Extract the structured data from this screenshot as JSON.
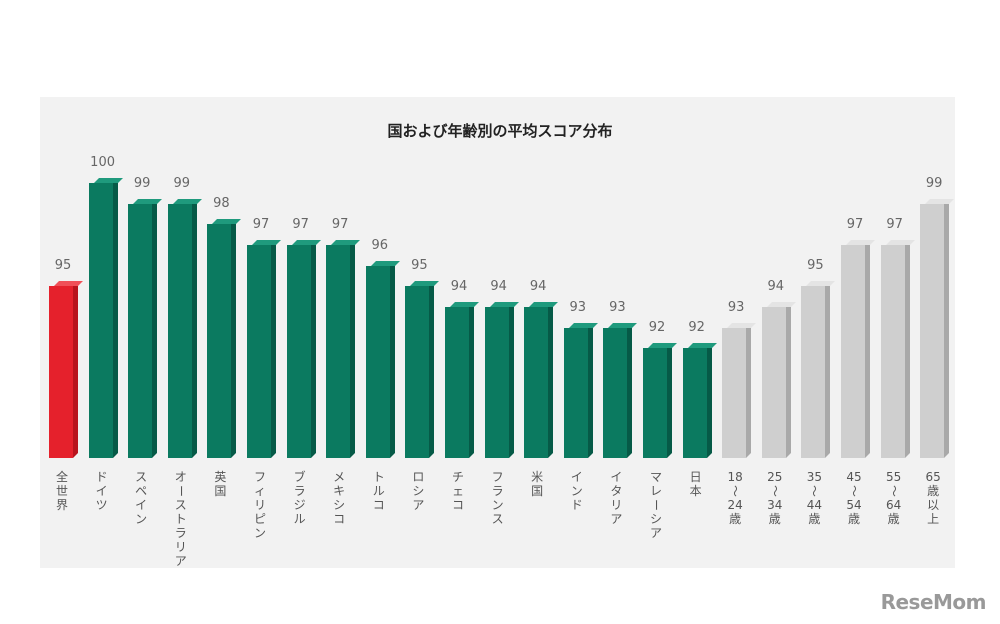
{
  "logo": "ReseMom",
  "chart_data": {
    "type": "bar",
    "title": "国および年齢別の平均スコア分布",
    "categories": [
      "全世界",
      "ドイツ",
      "スペイン",
      "オーストラリア",
      "英国",
      "フィリピン",
      "ブラジル",
      "メキシコ",
      "トルコ",
      "ロシア",
      "チェコ",
      "フランス",
      "米国",
      "インド",
      "イタリア",
      "マレーシア",
      "日本",
      "18～24歳",
      "25～34歳",
      "35～44歳",
      "45～54歳",
      "55～64歳",
      "65歳以上"
    ],
    "values": [
      95,
      100,
      99,
      99,
      98,
      97,
      97,
      97,
      96,
      95,
      94,
      94,
      94,
      93,
      93,
      92,
      92,
      93,
      94,
      95,
      97,
      97,
      99
    ],
    "groups": [
      "world",
      "country",
      "country",
      "country",
      "country",
      "country",
      "country",
      "country",
      "country",
      "country",
      "country",
      "country",
      "country",
      "country",
      "country",
      "country",
      "country",
      "age",
      "age",
      "age",
      "age",
      "age",
      "age"
    ],
    "colors": {
      "world": "#e5212c",
      "country": "#0b7a60",
      "age": "#cfcfcf"
    },
    "xlabel": "",
    "ylabel": "",
    "ylim": [
      86.7,
      100
    ]
  }
}
